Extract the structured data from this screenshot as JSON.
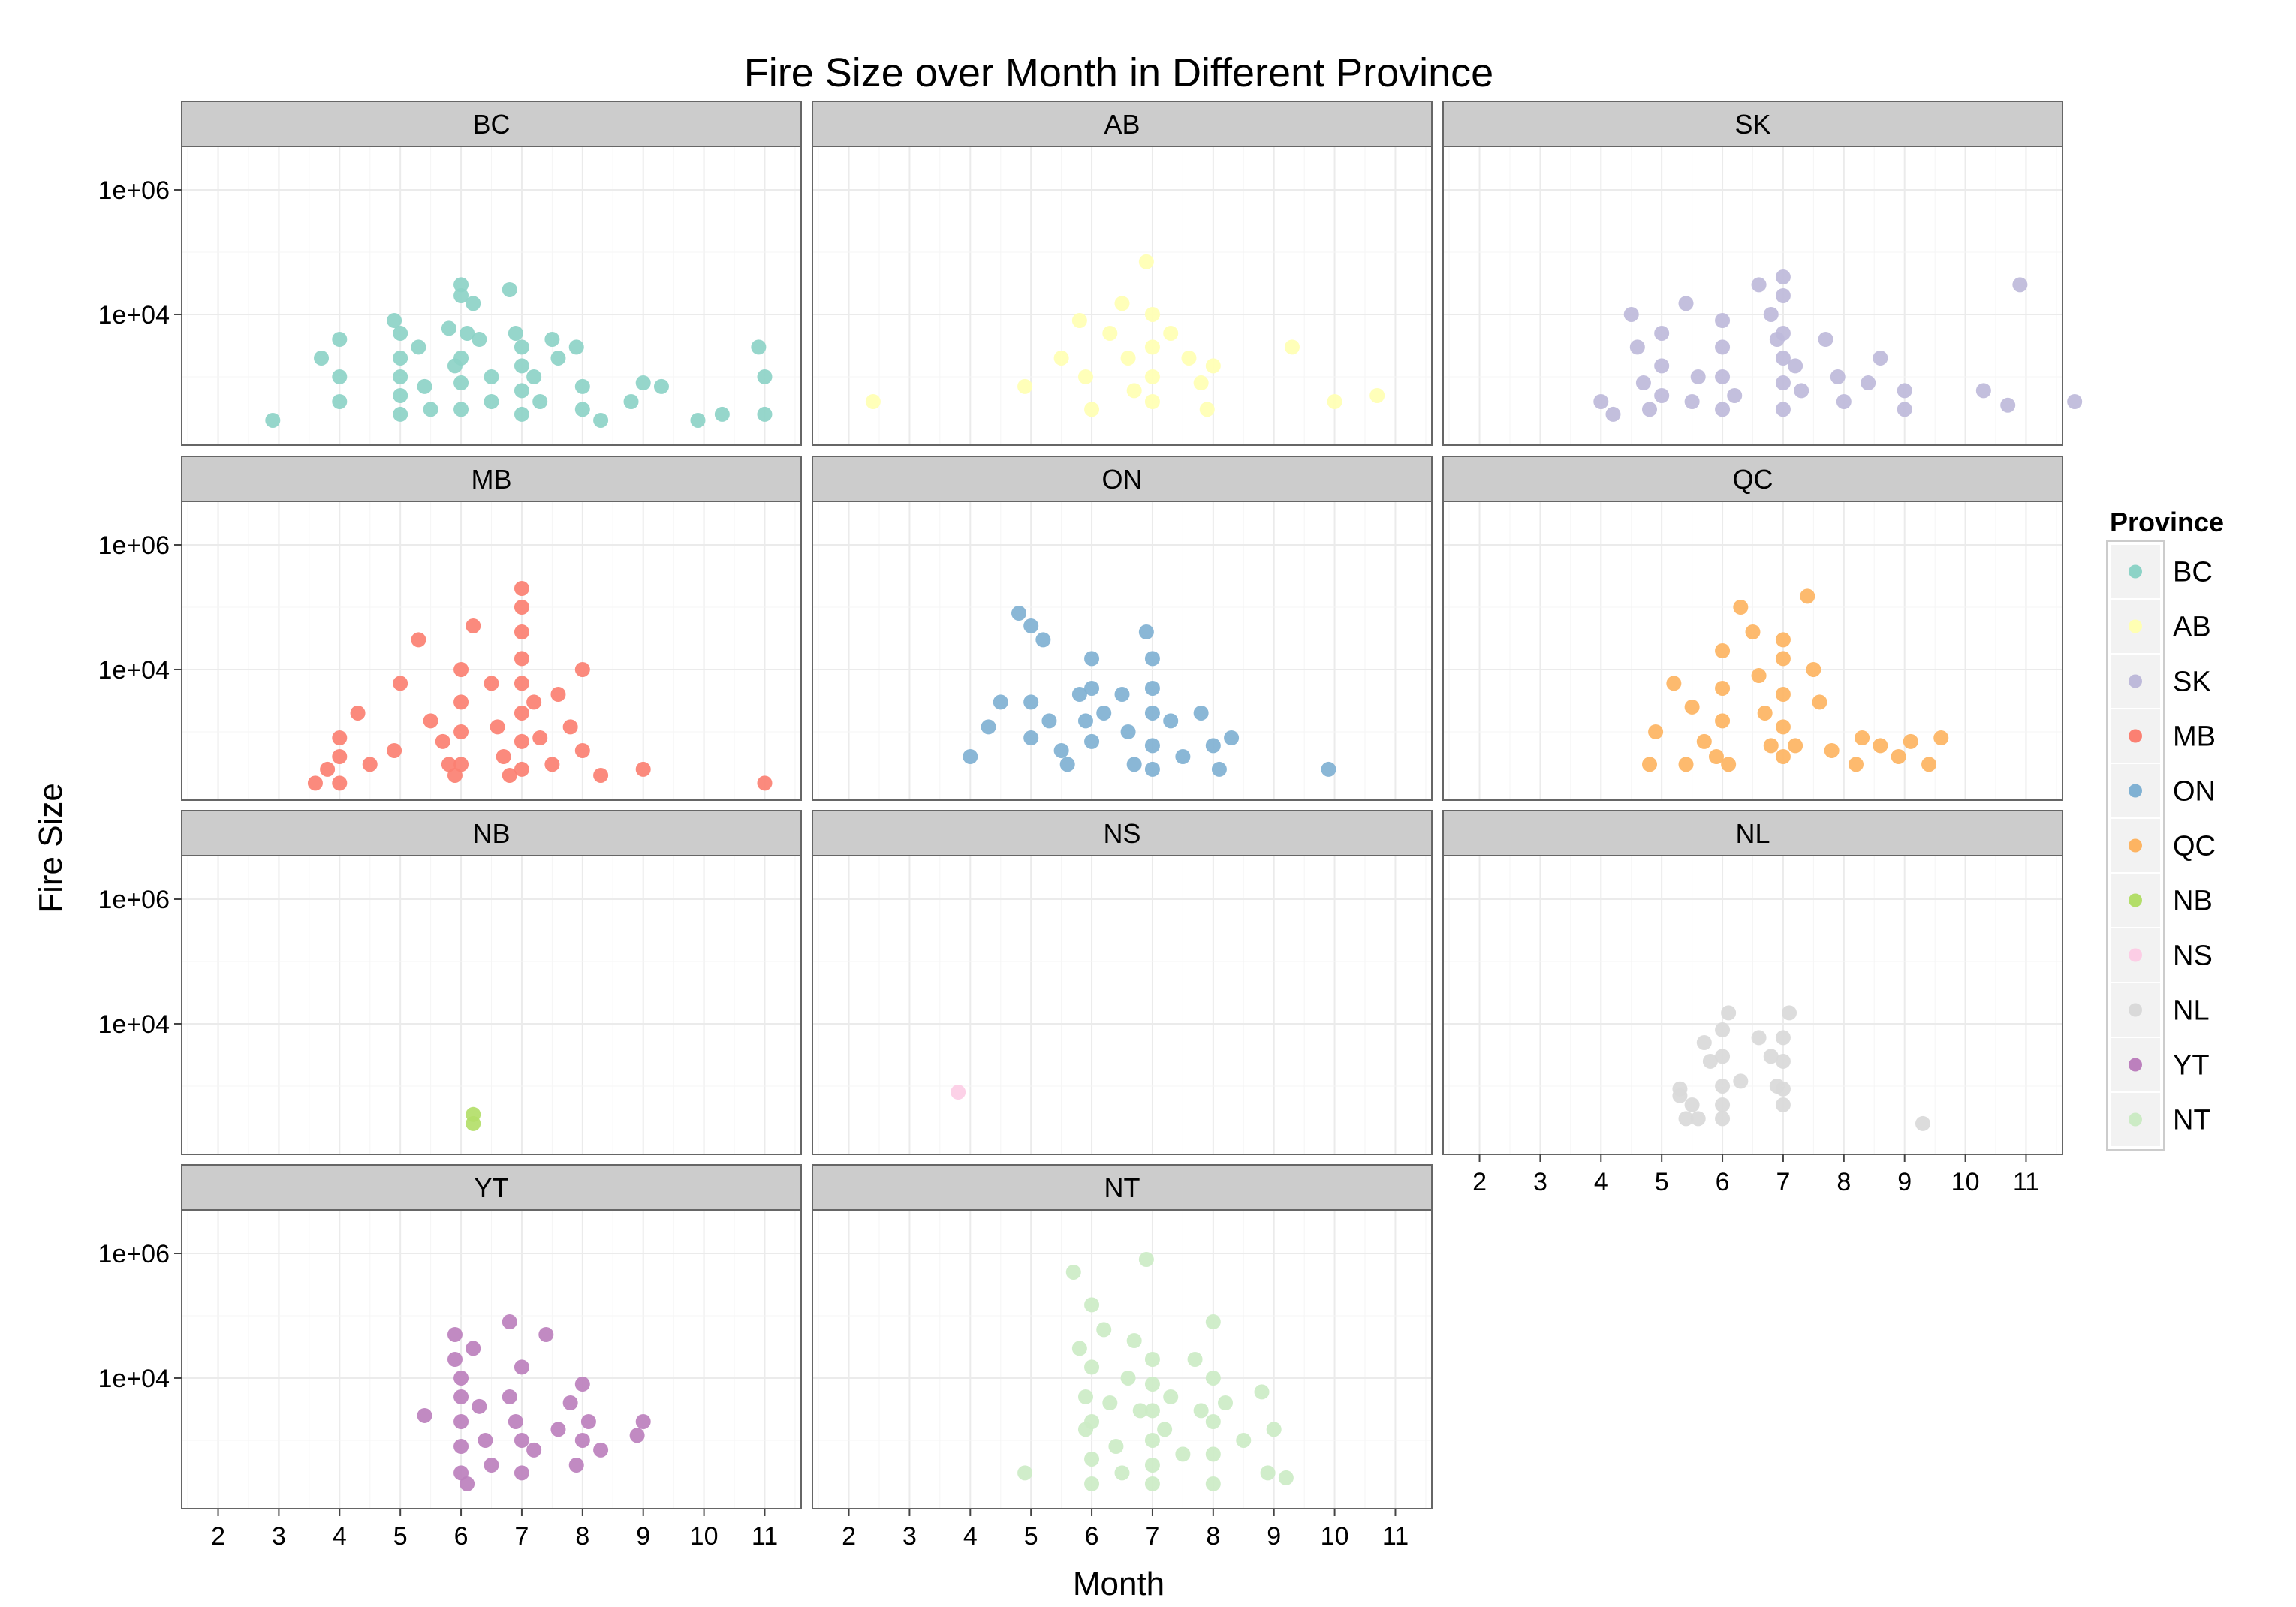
{
  "chart_data": {
    "type": "scatter",
    "title": "Fire Size over Month in Different Province",
    "xlabel": "Month",
    "ylabel": "Fire Size",
    "x_ticks": [
      2,
      3,
      4,
      5,
      6,
      7,
      8,
      9,
      10,
      11
    ],
    "xlim": [
      1.4,
      11.6
    ],
    "y_scale": "log10",
    "y_ticks": [
      1000000,
      10000
    ],
    "y_tick_labels": [
      "1e+06",
      "1e+04"
    ],
    "ylim": [
      80,
      5000000
    ],
    "grid": true,
    "legend": {
      "title": "Province",
      "position": "right"
    },
    "facets": [
      {
        "name": "BC",
        "color": "#8DD3C7",
        "points": [
          [
            2.9,
            200
          ],
          [
            3.7,
            2000
          ],
          [
            4,
            1000
          ],
          [
            4,
            400
          ],
          [
            4,
            4000
          ],
          [
            4.9,
            8000
          ],
          [
            5,
            5000
          ],
          [
            5,
            2000
          ],
          [
            5,
            1000
          ],
          [
            5,
            500
          ],
          [
            5,
            250
          ],
          [
            5.3,
            3000
          ],
          [
            5.4,
            700
          ],
          [
            5.5,
            300
          ],
          [
            5.8,
            6000
          ],
          [
            5.9,
            1500
          ],
          [
            6,
            30000
          ],
          [
            6,
            20000
          ],
          [
            6.1,
            5000
          ],
          [
            6,
            2000
          ],
          [
            6,
            800
          ],
          [
            6,
            300
          ],
          [
            6.2,
            15000
          ],
          [
            6.3,
            4000
          ],
          [
            6.5,
            1000
          ],
          [
            6.5,
            400
          ],
          [
            6.8,
            25000
          ],
          [
            6.9,
            5000
          ],
          [
            7,
            3000
          ],
          [
            7,
            1500
          ],
          [
            7,
            600
          ],
          [
            7,
            250
          ],
          [
            7.2,
            1000
          ],
          [
            7.3,
            400
          ],
          [
            7.5,
            4000
          ],
          [
            7.6,
            2000
          ],
          [
            7.9,
            3000
          ],
          [
            8,
            700
          ],
          [
            8,
            300
          ],
          [
            8.3,
            200
          ],
          [
            8.8,
            400
          ],
          [
            9,
            800
          ],
          [
            9.3,
            700
          ],
          [
            9.9,
            200
          ],
          [
            10.3,
            250
          ],
          [
            10.9,
            3000
          ],
          [
            11,
            1000
          ],
          [
            11,
            250
          ]
        ]
      },
      {
        "name": "AB",
        "color": "#FFFFB3",
        "points": [
          [
            2.4,
            400
          ],
          [
            4.9,
            700
          ],
          [
            5.5,
            2000
          ],
          [
            5.8,
            8000
          ],
          [
            5.9,
            1000
          ],
          [
            6,
            300
          ],
          [
            6.3,
            5000
          ],
          [
            6.5,
            15000
          ],
          [
            6.6,
            2000
          ],
          [
            6.7,
            600
          ],
          [
            6.9,
            70000
          ],
          [
            7,
            10000
          ],
          [
            7,
            3000
          ],
          [
            7,
            1000
          ],
          [
            7,
            400
          ],
          [
            7.3,
            5000
          ],
          [
            7.6,
            2000
          ],
          [
            7.8,
            800
          ],
          [
            7.9,
            300
          ],
          [
            8,
            1500
          ],
          [
            9.3,
            3000
          ],
          [
            10,
            400
          ],
          [
            10.7,
            500
          ]
        ]
      },
      {
        "name": "SK",
        "color": "#BEBADA",
        "points": [
          [
            4,
            400
          ],
          [
            4.2,
            250
          ],
          [
            4.5,
            10000
          ],
          [
            4.6,
            3000
          ],
          [
            4.7,
            800
          ],
          [
            4.8,
            300
          ],
          [
            5,
            5000
          ],
          [
            5,
            1500
          ],
          [
            5,
            500
          ],
          [
            5.4,
            15000
          ],
          [
            5.5,
            400
          ],
          [
            5.6,
            1000
          ],
          [
            6,
            8000
          ],
          [
            6,
            3000
          ],
          [
            6,
            1000
          ],
          [
            6,
            300
          ],
          [
            6.2,
            500
          ],
          [
            6.6,
            30000
          ],
          [
            6.8,
            10000
          ],
          [
            6.9,
            4000
          ],
          [
            7,
            40000
          ],
          [
            7,
            20000
          ],
          [
            7,
            5000
          ],
          [
            7,
            2000
          ],
          [
            7,
            800
          ],
          [
            7,
            300
          ],
          [
            7.2,
            1500
          ],
          [
            7.3,
            600
          ],
          [
            7.7,
            4000
          ],
          [
            7.9,
            1000
          ],
          [
            8,
            400
          ],
          [
            8.4,
            800
          ],
          [
            8.6,
            2000
          ],
          [
            9,
            600
          ],
          [
            9,
            300
          ],
          [
            10.3,
            600
          ],
          [
            10.7,
            350
          ],
          [
            10.9,
            30000
          ],
          [
            11.8,
            400
          ]
        ]
      },
      {
        "name": "MB",
        "color": "#FB8072",
        "points": [
          [
            3.6,
            150
          ],
          [
            3.8,
            250
          ],
          [
            4,
            800
          ],
          [
            4,
            400
          ],
          [
            4,
            150
          ],
          [
            4.3,
            2000
          ],
          [
            4.5,
            300
          ],
          [
            4.9,
            500
          ],
          [
            5,
            6000
          ],
          [
            5.3,
            30000
          ],
          [
            5.5,
            1500
          ],
          [
            5.7,
            700
          ],
          [
            5.8,
            300
          ],
          [
            5.9,
            200
          ],
          [
            6,
            10000
          ],
          [
            6,
            3000
          ],
          [
            6,
            1000
          ],
          [
            6,
            300
          ],
          [
            6.2,
            50000
          ],
          [
            6.5,
            6000
          ],
          [
            6.6,
            1200
          ],
          [
            6.7,
            400
          ],
          [
            6.8,
            200
          ],
          [
            7,
            200000
          ],
          [
            7,
            100000
          ],
          [
            7,
            40000
          ],
          [
            7,
            15000
          ],
          [
            7,
            6000
          ],
          [
            7,
            2000
          ],
          [
            7,
            700
          ],
          [
            7,
            250
          ],
          [
            7.2,
            3000
          ],
          [
            7.3,
            800
          ],
          [
            7.5,
            300
          ],
          [
            7.6,
            4000
          ],
          [
            7.8,
            1200
          ],
          [
            8,
            10000
          ],
          [
            8,
            500
          ],
          [
            8.3,
            200
          ],
          [
            9,
            250
          ],
          [
            11,
            150
          ]
        ]
      },
      {
        "name": "ON",
        "color": "#80B1D3",
        "points": [
          [
            4,
            400
          ],
          [
            4.3,
            1200
          ],
          [
            4.5,
            3000
          ],
          [
            4.8,
            80000
          ],
          [
            5,
            50000
          ],
          [
            5,
            3000
          ],
          [
            5,
            800
          ],
          [
            5.2,
            30000
          ],
          [
            5.3,
            1500
          ],
          [
            5.5,
            500
          ],
          [
            5.6,
            300
          ],
          [
            5.8,
            4000
          ],
          [
            5.9,
            1500
          ],
          [
            6,
            15000
          ],
          [
            6,
            5000
          ],
          [
            6,
            700
          ],
          [
            6.2,
            2000
          ],
          [
            6.5,
            4000
          ],
          [
            6.6,
            1000
          ],
          [
            6.7,
            300
          ],
          [
            6.9,
            40000
          ],
          [
            7,
            15000
          ],
          [
            7,
            5000
          ],
          [
            7,
            2000
          ],
          [
            7,
            600
          ],
          [
            7,
            250
          ],
          [
            7.3,
            1500
          ],
          [
            7.5,
            400
          ],
          [
            7.8,
            2000
          ],
          [
            8,
            600
          ],
          [
            8.1,
            250
          ],
          [
            8.3,
            800
          ],
          [
            9.9,
            250
          ]
        ]
      },
      {
        "name": "QC",
        "color": "#FDB462",
        "points": [
          [
            4.8,
            300
          ],
          [
            4.9,
            1000
          ],
          [
            5.2,
            6000
          ],
          [
            5.4,
            300
          ],
          [
            5.5,
            2500
          ],
          [
            5.7,
            700
          ],
          [
            5.9,
            400
          ],
          [
            6,
            20000
          ],
          [
            6,
            5000
          ],
          [
            6,
            1500
          ],
          [
            6.1,
            300
          ],
          [
            6.3,
            100000
          ],
          [
            6.5,
            40000
          ],
          [
            6.6,
            8000
          ],
          [
            6.7,
            2000
          ],
          [
            6.8,
            600
          ],
          [
            7,
            30000
          ],
          [
            7,
            15000
          ],
          [
            7,
            4000
          ],
          [
            7,
            1200
          ],
          [
            7,
            400
          ],
          [
            7.2,
            600
          ],
          [
            7.4,
            150000
          ],
          [
            7.5,
            10000
          ],
          [
            7.6,
            3000
          ],
          [
            7.8,
            500
          ],
          [
            8.2,
            300
          ],
          [
            8.3,
            800
          ],
          [
            8.6,
            600
          ],
          [
            8.9,
            400
          ],
          [
            9.1,
            700
          ],
          [
            9.4,
            300
          ],
          [
            9.6,
            800
          ]
        ]
      },
      {
        "name": "NB",
        "color": "#B3DE69",
        "points": [
          [
            6.2,
            250
          ],
          [
            6.2,
            350
          ]
        ]
      },
      {
        "name": "NS",
        "color": "#FCCDE5",
        "points": [
          [
            3.8,
            800
          ]
        ]
      },
      {
        "name": "NL",
        "color": "#D9D9D9",
        "points": [
          [
            5.3,
            900
          ],
          [
            5.3,
            700
          ],
          [
            5.4,
            300
          ],
          [
            5.5,
            500
          ],
          [
            5.6,
            300
          ],
          [
            5.7,
            5000
          ],
          [
            5.8,
            2500
          ],
          [
            6,
            8000
          ],
          [
            6,
            3000
          ],
          [
            6,
            1000
          ],
          [
            6,
            500
          ],
          [
            6,
            300
          ],
          [
            6.1,
            15000
          ],
          [
            6.3,
            1200
          ],
          [
            6.6,
            6000
          ],
          [
            6.8,
            3000
          ],
          [
            6.9,
            1000
          ],
          [
            7,
            6000
          ],
          [
            7,
            2500
          ],
          [
            7,
            900
          ],
          [
            7,
            500
          ],
          [
            7.1,
            15000
          ],
          [
            9.3,
            250
          ]
        ]
      },
      {
        "name": "YT",
        "color": "#BC80BD",
        "points": [
          [
            5.4,
            2500
          ],
          [
            5.9,
            50000
          ],
          [
            5.9,
            20000
          ],
          [
            6,
            10000
          ],
          [
            6,
            5000
          ],
          [
            6,
            2000
          ],
          [
            6,
            800
          ],
          [
            6,
            300
          ],
          [
            6.1,
            200
          ],
          [
            6.2,
            30000
          ],
          [
            6.3,
            3500
          ],
          [
            6.4,
            1000
          ],
          [
            6.5,
            400
          ],
          [
            6.8,
            80000
          ],
          [
            6.8,
            5000
          ],
          [
            6.9,
            2000
          ],
          [
            7,
            15000
          ],
          [
            7,
            1000
          ],
          [
            7,
            300
          ],
          [
            7.2,
            700
          ],
          [
            7.4,
            50000
          ],
          [
            7.6,
            1500
          ],
          [
            7.8,
            4000
          ],
          [
            7.9,
            400
          ],
          [
            8,
            8000
          ],
          [
            8,
            1000
          ],
          [
            8.1,
            2000
          ],
          [
            8.3,
            700
          ],
          [
            8.9,
            1200
          ],
          [
            9,
            2000
          ]
        ]
      },
      {
        "name": "NT",
        "color": "#CCEBC5",
        "points": [
          [
            4.9,
            300
          ],
          [
            5.7,
            500000
          ],
          [
            5.8,
            30000
          ],
          [
            5.9,
            5000
          ],
          [
            5.9,
            1500
          ],
          [
            6,
            150000
          ],
          [
            6,
            15000
          ],
          [
            6,
            2000
          ],
          [
            6,
            500
          ],
          [
            6,
            200
          ],
          [
            6.2,
            60000
          ],
          [
            6.3,
            4000
          ],
          [
            6.4,
            800
          ],
          [
            6.5,
            300
          ],
          [
            6.6,
            10000
          ],
          [
            6.7,
            40000
          ],
          [
            6.8,
            3000
          ],
          [
            6.9,
            800000
          ],
          [
            7,
            20000
          ],
          [
            7,
            8000
          ],
          [
            7,
            3000
          ],
          [
            7,
            1000
          ],
          [
            7,
            400
          ],
          [
            7,
            200
          ],
          [
            7.2,
            1500
          ],
          [
            7.3,
            5000
          ],
          [
            7.5,
            600
          ],
          [
            7.7,
            20000
          ],
          [
            7.8,
            3000
          ],
          [
            8,
            80000
          ],
          [
            8,
            10000
          ],
          [
            8,
            2000
          ],
          [
            8,
            600
          ],
          [
            8,
            200
          ],
          [
            8.2,
            4000
          ],
          [
            8.5,
            1000
          ],
          [
            8.8,
            6000
          ],
          [
            8.9,
            300
          ],
          [
            9,
            1500
          ],
          [
            9.2,
            250
          ]
        ]
      }
    ]
  }
}
